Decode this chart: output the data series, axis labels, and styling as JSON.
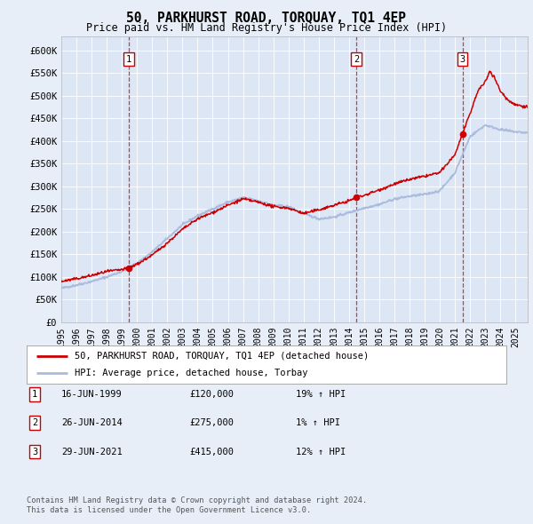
{
  "title": "50, PARKHURST ROAD, TORQUAY, TQ1 4EP",
  "subtitle": "Price paid vs. HM Land Registry's House Price Index (HPI)",
  "background_color": "#e8eef8",
  "plot_bg_color": "#dce6f5",
  "sale_dates_float": [
    1999.456,
    2014.484,
    2021.493
  ],
  "sale_prices": [
    120000,
    275000,
    415000
  ],
  "sale_labels": [
    "1",
    "2",
    "3"
  ],
  "sale_info": [
    {
      "label": "1",
      "date": "16-JUN-1999",
      "price": "£120,000",
      "hpi": "19% ↑ HPI"
    },
    {
      "label": "2",
      "date": "26-JUN-2014",
      "price": "£275,000",
      "hpi": "1% ↑ HPI"
    },
    {
      "label": "3",
      "date": "29-JUN-2021",
      "price": "£415,000",
      "hpi": "12% ↑ HPI"
    }
  ],
  "legend_line1": "50, PARKHURST ROAD, TORQUAY, TQ1 4EP (detached house)",
  "legend_line2": "HPI: Average price, detached house, Torbay",
  "footer1": "Contains HM Land Registry data © Crown copyright and database right 2024.",
  "footer2": "This data is licensed under the Open Government Licence v3.0.",
  "line_color_red": "#cc0000",
  "line_color_blue": "#aabbdd",
  "marker_color": "#cc0000",
  "yticks": [
    0,
    50000,
    100000,
    150000,
    200000,
    250000,
    300000,
    350000,
    400000,
    450000,
    500000,
    550000,
    600000
  ],
  "yticklabels": [
    "£0",
    "£50K",
    "£100K",
    "£150K",
    "£200K",
    "£250K",
    "£300K",
    "£350K",
    "£400K",
    "£450K",
    "£500K",
    "£550K",
    "£600K"
  ],
  "xlim_start": 1995.0,
  "xlim_end": 2025.8,
  "ylim_max": 630000
}
